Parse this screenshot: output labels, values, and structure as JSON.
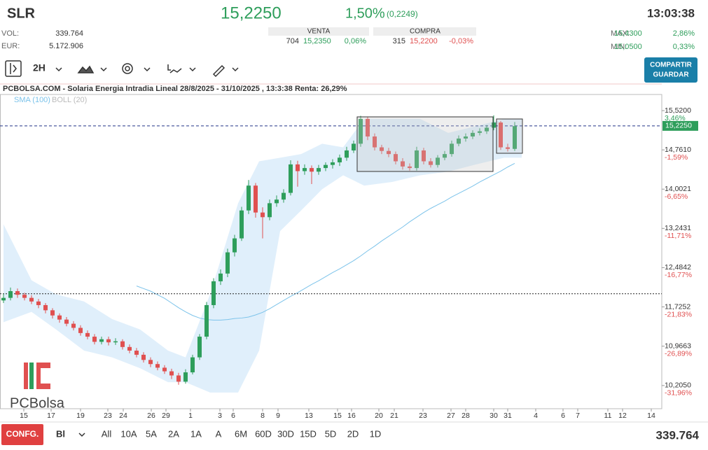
{
  "header": {
    "ticker": "SLR",
    "price": "15,2250",
    "change_pct": "1,50%",
    "change_abs": "(0,2249)",
    "time": "13:03:38",
    "vol_label": "VOL:",
    "vol": "339.764",
    "eur_label": "EUR:",
    "eur": "5.172.906",
    "sell": {
      "title": "VENTA",
      "qty": "704",
      "price": "15,2350",
      "pct": "0,06%"
    },
    "buy": {
      "title": "COMPRA",
      "qty": "315",
      "price": "15,2200",
      "pct": "-0,03%"
    },
    "max_label": "MAX:",
    "max": "15,4300",
    "max_pct": "2,86%",
    "min_label": "MIN:",
    "min": "15,0500",
    "min_pct": "0,33%"
  },
  "toolbar": {
    "interval": "2H",
    "share": "COMPARTIR",
    "save": "GUARDAR"
  },
  "footer": {
    "config": "CONFG.",
    "mode": "Bl",
    "ranges": [
      "All",
      "10A",
      "5A",
      "2A",
      "1A",
      "A",
      "6M",
      "60D",
      "30D",
      "15D",
      "5D",
      "2D",
      "1D"
    ]
  },
  "chart_data": {
    "type": "candlestick",
    "title": "PCBOLSA.COM - Solaria Energia Intradia Lineal 28/8/2025 - 31/10/2025 , 13:3:38 Renta: 26,29%",
    "logo": "PCBolsa",
    "up_color": "#2e9e5b",
    "down_color": "#e05050",
    "open": [
      11.85,
      11.9,
      12.03,
      11.96,
      11.9,
      11.83,
      11.76,
      11.66,
      11.56,
      11.48,
      11.4,
      11.32,
      11.22,
      11.15,
      11.05,
      11.1,
      11.04,
      11.06,
      10.95,
      10.88,
      10.8,
      10.7,
      10.62,
      10.55,
      10.48,
      10.4,
      10.28,
      10.46,
      10.75,
      11.15,
      11.76,
      12.22,
      12.37,
      12.78,
      13.05,
      13.59,
      14.07,
      13.55,
      13.46,
      13.73,
      13.8,
      13.93,
      14.48,
      14.35,
      14.41,
      14.34,
      14.41,
      14.47,
      14.52,
      14.61,
      14.75,
      14.88,
      15.36,
      15.02,
      14.81,
      14.74,
      14.68,
      14.54,
      14.44,
      14.41,
      14.75,
      14.54,
      14.47,
      14.61,
      14.68,
      14.88,
      14.98,
      15.02,
      15.09,
      15.12,
      15.19,
      15.29,
      14.81,
      14.78
    ],
    "high": [
      11.98,
      12.1,
      12.08,
      12.0,
      11.95,
      11.88,
      11.8,
      11.7,
      11.6,
      11.53,
      11.45,
      11.37,
      11.27,
      11.2,
      11.15,
      11.15,
      11.12,
      11.1,
      11.0,
      10.93,
      10.85,
      10.75,
      10.67,
      10.6,
      10.53,
      10.45,
      10.52,
      10.8,
      11.2,
      11.82,
      12.28,
      12.45,
      12.85,
      13.12,
      13.66,
      14.18,
      14.12,
      13.65,
      13.8,
      13.88,
      14.0,
      14.56,
      14.55,
      14.48,
      14.46,
      14.47,
      14.52,
      14.58,
      14.67,
      14.82,
      14.94,
      15.42,
      15.4,
      15.08,
      14.86,
      14.8,
      14.73,
      14.6,
      14.5,
      14.82,
      14.8,
      14.6,
      14.66,
      14.74,
      14.94,
      15.04,
      15.08,
      15.14,
      15.18,
      15.24,
      15.43,
      15.32,
      14.88,
      15.3
    ],
    "low": [
      11.8,
      11.85,
      11.9,
      11.85,
      11.78,
      11.7,
      11.6,
      11.5,
      11.42,
      11.35,
      11.27,
      11.17,
      11.1,
      11.0,
      11.0,
      10.98,
      10.99,
      10.9,
      10.83,
      10.75,
      10.65,
      10.56,
      10.5,
      10.43,
      10.33,
      10.22,
      10.24,
      10.42,
      10.7,
      11.1,
      11.7,
      12.15,
      12.3,
      12.7,
      13.0,
      13.52,
      13.45,
      13.05,
      13.4,
      13.66,
      13.74,
      13.88,
      14.05,
      14.28,
      14.1,
      14.28,
      14.35,
      14.4,
      14.45,
      14.55,
      14.7,
      14.82,
      14.95,
      14.75,
      14.68,
      14.62,
      14.48,
      14.38,
      14.36,
      14.36,
      14.48,
      14.42,
      14.42,
      14.56,
      14.63,
      14.83,
      14.92,
      14.97,
      15.04,
      15.07,
      15.14,
      14.76,
      14.73,
      14.74
    ],
    "close": [
      11.9,
      12.03,
      11.96,
      11.9,
      11.83,
      11.76,
      11.66,
      11.56,
      11.48,
      11.4,
      11.32,
      11.22,
      11.15,
      11.05,
      11.1,
      11.04,
      11.06,
      10.95,
      10.88,
      10.8,
      10.7,
      10.62,
      10.55,
      10.48,
      10.4,
      10.28,
      10.46,
      10.75,
      11.15,
      11.76,
      12.22,
      12.37,
      12.78,
      13.05,
      13.59,
      14.07,
      13.55,
      13.46,
      13.73,
      13.8,
      13.93,
      14.48,
      14.35,
      14.41,
      14.34,
      14.41,
      14.47,
      14.52,
      14.61,
      14.75,
      14.88,
      15.36,
      15.02,
      14.81,
      14.74,
      14.68,
      14.54,
      14.44,
      14.41,
      14.75,
      14.54,
      14.47,
      14.61,
      14.68,
      14.88,
      14.98,
      15.02,
      15.09,
      15.12,
      15.19,
      15.29,
      14.81,
      14.78,
      15.22
    ],
    "sma": {
      "name": "SMA (100)",
      "color": "#7cc3ea",
      "values": [
        null,
        null,
        null,
        null,
        null,
        null,
        null,
        null,
        null,
        null,
        null,
        null,
        null,
        null,
        null,
        null,
        null,
        null,
        null,
        12.13,
        12.08,
        12.03,
        11.96,
        11.89,
        11.8,
        11.71,
        11.63,
        11.56,
        11.51,
        11.48,
        11.47,
        11.47,
        11.48,
        11.5,
        11.51,
        11.53,
        11.57,
        11.62,
        11.69,
        11.77,
        11.85,
        11.93,
        12.0,
        12.08,
        12.16,
        12.23,
        12.31,
        12.39,
        12.46,
        12.54,
        12.62,
        12.71,
        12.81,
        12.9,
        13.0,
        13.09,
        13.18,
        13.27,
        13.37,
        13.46,
        13.55,
        13.63,
        13.7,
        13.77,
        13.85,
        13.92,
        13.99,
        14.06,
        14.14,
        14.21,
        14.28,
        14.35,
        14.43,
        14.5
      ]
    },
    "bollinger": {
      "name": "BOLL (20)",
      "color": "#bbbbbb",
      "fill": "#d6eafa",
      "x": [
        0.5,
        4.5,
        8,
        12,
        16,
        20,
        24,
        26.5,
        30,
        34,
        37,
        40,
        43,
        46,
        49,
        52,
        56,
        60,
        64,
        68,
        72,
        74.5
      ],
      "upper": [
        13.32,
        12.24,
        11.97,
        11.83,
        11.49,
        11.29,
        10.88,
        10.75,
        11.97,
        13.73,
        14.54,
        14.61,
        14.68,
        14.88,
        14.81,
        15.36,
        15.36,
        15.36,
        15.09,
        15.22,
        15.36,
        15.36
      ],
      "lower": [
        11.43,
        11.63,
        11.29,
        10.88,
        10.75,
        10.54,
        10.27,
        10.27,
        10.07,
        10.07,
        10.88,
        13.19,
        13.59,
        14.0,
        14.27,
        14.07,
        14.14,
        14.27,
        14.34,
        14.48,
        14.61,
        14.61
      ]
    },
    "last_price": {
      "value": 15.225,
      "label": "15,2250"
    },
    "reference_line": 11.98,
    "xlim": [
      0,
      94.5
    ],
    "xticks": [
      {
        "value": 3.4,
        "label": "15"
      },
      {
        "value": 7.3,
        "label": "17"
      },
      {
        "value": 11.5,
        "label": "19"
      },
      {
        "value": 15.4,
        "label": "23"
      },
      {
        "value": 17.6,
        "label": "24"
      },
      {
        "value": 21.6,
        "label": "26"
      },
      {
        "value": 23.7,
        "label": "29"
      },
      {
        "value": 27.2,
        "label": "1"
      },
      {
        "value": 31.4,
        "label": "3"
      },
      {
        "value": 33.3,
        "label": "6"
      },
      {
        "value": 37.5,
        "label": "8"
      },
      {
        "value": 39.7,
        "label": "9"
      },
      {
        "value": 44.1,
        "label": "13"
      },
      {
        "value": 48.2,
        "label": "15"
      },
      {
        "value": 50.2,
        "label": "16"
      },
      {
        "value": 54.1,
        "label": "20"
      },
      {
        "value": 56.3,
        "label": "21"
      },
      {
        "value": 60.4,
        "label": "23"
      },
      {
        "value": 64.4,
        "label": "27"
      },
      {
        "value": 66.5,
        "label": "28"
      },
      {
        "value": 70.5,
        "label": "30"
      },
      {
        "value": 72.5,
        "label": "31"
      },
      {
        "value": 76.5,
        "label": "4"
      },
      {
        "value": 80.4,
        "label": "6"
      },
      {
        "value": 82.5,
        "label": "7"
      },
      {
        "value": 86.8,
        "label": "11"
      },
      {
        "value": 88.9,
        "label": "12"
      },
      {
        "value": 93,
        "label": "14"
      }
    ],
    "ylim": [
      9.757,
      15.832
    ],
    "yticks": [
      {
        "value": 15.52,
        "label": "15,5200"
      },
      {
        "value": 14.761,
        "label": "14,7610"
      },
      {
        "value": 14.0021,
        "label": "14,0021"
      },
      {
        "value": 13.2431,
        "label": "13,2431"
      },
      {
        "value": 12.4842,
        "label": "12,4842"
      },
      {
        "value": 11.7252,
        "label": "11,7252"
      },
      {
        "value": 10.9663,
        "label": "10,9663"
      },
      {
        "value": 10.205,
        "label": "10,2050"
      }
    ],
    "ytick_pct_labels": [
      "3,46%",
      "-1,59%",
      "-6,65%",
      "-11,71%",
      "-16,77%",
      "-21,83%",
      "-26,89%",
      "-31,96%"
    ]
  }
}
